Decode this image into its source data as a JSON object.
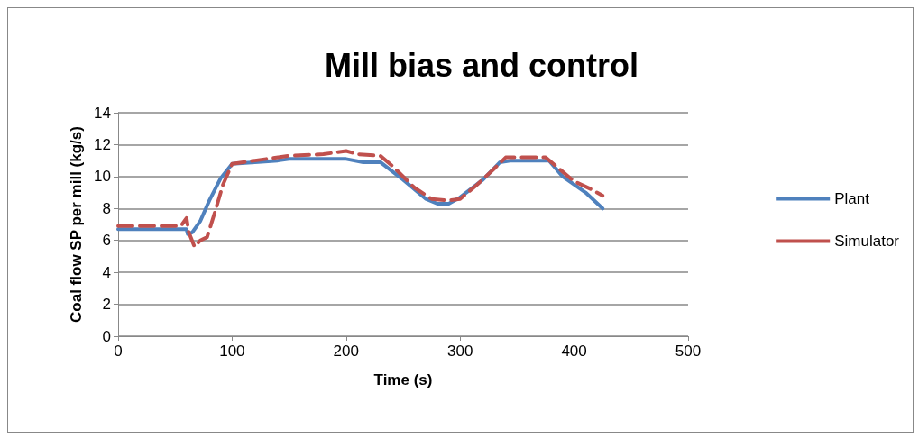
{
  "chart_data": {
    "type": "line",
    "title": "Mill bias and control",
    "xlabel": "Time (s)",
    "ylabel": "Coal flow SP per mill (kg/s)",
    "xlim": [
      0,
      500
    ],
    "xticks": [
      0,
      100,
      200,
      300,
      400,
      500
    ],
    "ylim": [
      0,
      14
    ],
    "yticks": [
      0,
      2,
      4,
      6,
      8,
      10,
      12,
      14
    ],
    "grid": "y",
    "legend": "right",
    "marker": "none",
    "series": [
      {
        "name": "Plant",
        "color": "#4f81bd",
        "line_style": "solid",
        "x": [
          0,
          60,
          61,
          65,
          72,
          80,
          90,
          100,
          120,
          140,
          150,
          200,
          215,
          230,
          250,
          270,
          280,
          290,
          300,
          320,
          335,
          345,
          378,
          390,
          410,
          425
        ],
        "values": [
          6.7,
          6.7,
          6.4,
          6.5,
          7.2,
          8.5,
          9.9,
          10.8,
          10.9,
          11.0,
          11.1,
          11.1,
          10.9,
          10.9,
          9.8,
          8.6,
          8.3,
          8.3,
          8.7,
          9.8,
          10.9,
          11.0,
          11.0,
          10.0,
          9.0,
          8.0
        ]
      },
      {
        "name": "Simulator",
        "color": "#c0504d",
        "line_style": "dashed",
        "x": [
          0,
          55,
          60,
          62,
          67,
          72,
          78,
          85,
          92,
          100,
          120,
          150,
          180,
          200,
          210,
          230,
          240,
          260,
          275,
          290,
          300,
          315,
          330,
          340,
          375,
          385,
          400,
          415,
          425
        ],
        "values": [
          6.9,
          6.9,
          7.4,
          6.5,
          5.6,
          6.0,
          6.2,
          7.8,
          9.5,
          10.8,
          11.0,
          11.3,
          11.4,
          11.6,
          11.4,
          11.3,
          10.7,
          9.3,
          8.6,
          8.5,
          8.6,
          9.5,
          10.5,
          11.2,
          11.2,
          10.6,
          9.7,
          9.2,
          8.8
        ]
      }
    ]
  }
}
